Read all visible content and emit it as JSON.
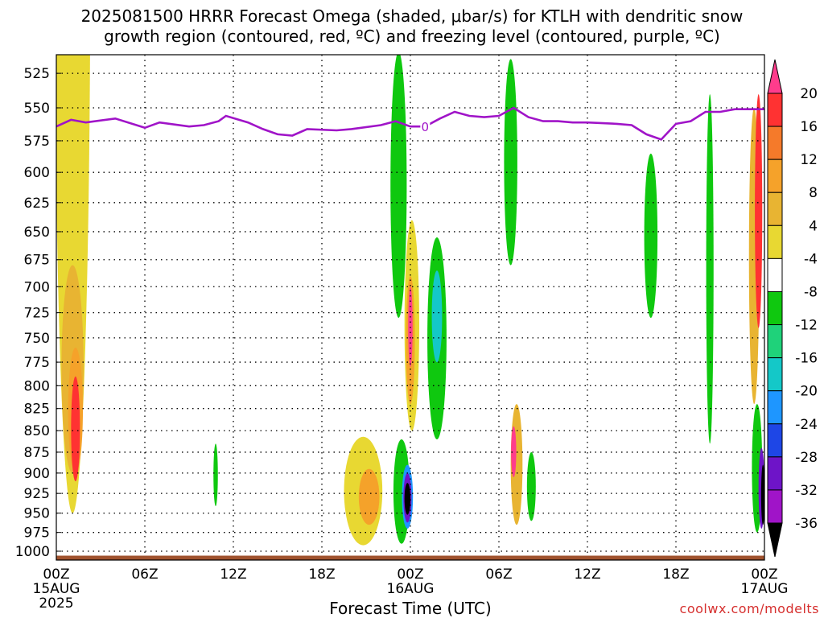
{
  "chart_data": {
    "type": "heatmap",
    "title": "2025081500 HRRR Forecast Omega (shaded, μbar/s) for KTLH with dendritic snow growth region (contoured, red, ºC) and freezing level (contoured, purple, ºC)",
    "title_lines": [
      "2025081500 HRRR Forecast Omega (shaded, μbar/s) for KTLH with dendritic snow",
      "growth region (contoured, red, ºC) and freezing level (contoured, purple, ºC)"
    ],
    "xlabel": "Forecast Time (UTC)",
    "ylabel": "",
    "credit": "coolwx.com/modelts",
    "x_ticks": [
      {
        "hour": 0,
        "label": "00Z",
        "sub": "15AUG",
        "sub2": "2025"
      },
      {
        "hour": 6,
        "label": "06Z"
      },
      {
        "hour": 12,
        "label": "12Z"
      },
      {
        "hour": 18,
        "label": "18Z"
      },
      {
        "hour": 24,
        "label": "00Z",
        "sub": "16AUG"
      },
      {
        "hour": 30,
        "label": "06Z"
      },
      {
        "hour": 36,
        "label": "12Z"
      },
      {
        "hour": 42,
        "label": "18Z"
      },
      {
        "hour": 48,
        "label": "00Z",
        "sub": "17AUG"
      }
    ],
    "x_range_hours": [
      0,
      48
    ],
    "y_ticks": [
      525,
      550,
      575,
      600,
      625,
      650,
      675,
      700,
      725,
      750,
      775,
      800,
      825,
      850,
      875,
      900,
      925,
      950,
      975,
      1000
    ],
    "y_range_hpa": [
      1012,
      512
    ],
    "y_scale": "log-pressure",
    "grid": "dotted",
    "colorbar": {
      "levels": [
        20,
        16,
        12,
        8,
        4,
        -4,
        -8,
        -12,
        -16,
        -20,
        -24,
        -28,
        -32,
        -36
      ],
      "colors": [
        "#ff3c8c",
        "#ff3232",
        "#f57a2a",
        "#f5a22a",
        "#e8b432",
        "#e8d832",
        "#ffffff",
        "#0fc80f",
        "#1fd27a",
        "#14c8c8",
        "#1e96ff",
        "#1e46e6",
        "#6e14c8",
        "#a014c8",
        "#a0a0a0",
        "#000000"
      ]
    },
    "freezing_level": {
      "label": "0",
      "color": "#a014c8",
      "points": [
        [
          0,
          564
        ],
        [
          1,
          559
        ],
        [
          2,
          561
        ],
        [
          4,
          558
        ],
        [
          6,
          565
        ],
        [
          7,
          561
        ],
        [
          9,
          564
        ],
        [
          10,
          563
        ],
        [
          11,
          560
        ],
        [
          11.5,
          556
        ],
        [
          13,
          561
        ],
        [
          14,
          566
        ],
        [
          15,
          570
        ],
        [
          16,
          571
        ],
        [
          17,
          566
        ],
        [
          19,
          567
        ],
        [
          20,
          566
        ],
        [
          22,
          563
        ],
        [
          23,
          560
        ],
        [
          24,
          564
        ],
        [
          25,
          564
        ],
        [
          26,
          558
        ],
        [
          27,
          553
        ],
        [
          28,
          556
        ],
        [
          29,
          557
        ],
        [
          30,
          556
        ],
        [
          31,
          550
        ],
        [
          32,
          557
        ],
        [
          33,
          560
        ],
        [
          34,
          560
        ],
        [
          35,
          561
        ],
        [
          36,
          561
        ],
        [
          38,
          562
        ],
        [
          39,
          563
        ],
        [
          40,
          570
        ],
        [
          41,
          574
        ],
        [
          42,
          562
        ],
        [
          43,
          560
        ],
        [
          44,
          553
        ],
        [
          45,
          553
        ],
        [
          46,
          551
        ],
        [
          48,
          551
        ]
      ]
    },
    "omega_regions": [
      {
        "x": 1.1,
        "p": 830,
        "w": 2.4,
        "h1": 610,
        "h2": 120,
        "color": "#e8d832"
      },
      {
        "x": 1.1,
        "p": 830,
        "w": 1.5,
        "h1": 150,
        "h2": 70,
        "color": "#e8b432"
      },
      {
        "x": 1.3,
        "p": 845,
        "w": 1.0,
        "h1": 85,
        "h2": 55,
        "color": "#f5a22a"
      },
      {
        "x": 1.3,
        "p": 850,
        "w": 0.6,
        "h1": 60,
        "h2": 60,
        "color": "#ff3232"
      },
      {
        "x": 10.8,
        "p": 903,
        "w": 0.3,
        "h1": 38,
        "h2": 38,
        "color": "#0fc80f"
      },
      {
        "x": 20.8,
        "p": 912,
        "w": 2.6,
        "h1": 55,
        "h2": 80,
        "color": "#e8d832"
      },
      {
        "x": 21.2,
        "p": 925,
        "w": 1.4,
        "h1": 30,
        "h2": 40,
        "color": "#f5a22a"
      },
      {
        "x": 23.2,
        "p": 650,
        "w": 1.1,
        "h1": 140,
        "h2": 80,
        "color": "#0fc80f"
      },
      {
        "x": 23.4,
        "p": 940,
        "w": 1.1,
        "h1": 80,
        "h2": 50,
        "color": "#0fc80f"
      },
      {
        "x": 24.1,
        "p": 750,
        "w": 1.0,
        "h1": 110,
        "h2": 100,
        "color": "#e8d832"
      },
      {
        "x": 24.0,
        "p": 760,
        "w": 0.6,
        "h1": 70,
        "h2": 60,
        "color": "#f5a22a"
      },
      {
        "x": 24.0,
        "p": 740,
        "w": 0.3,
        "h1": 40,
        "h2": 40,
        "color": "#ff3c8c"
      },
      {
        "x": 25.8,
        "p": 740,
        "w": 1.3,
        "h1": 85,
        "h2": 120,
        "color": "#0fc80f"
      },
      {
        "x": 25.8,
        "p": 730,
        "w": 0.7,
        "h1": 45,
        "h2": 45,
        "color": "#14c8c8"
      },
      {
        "x": 23.8,
        "p": 930,
        "w": 0.75,
        "h1": 40,
        "h2": 40,
        "color": "#1e96ff"
      },
      {
        "x": 23.8,
        "p": 930,
        "w": 0.55,
        "h1": 30,
        "h2": 32,
        "color": "#6e14c8"
      },
      {
        "x": 23.8,
        "p": 930,
        "w": 0.4,
        "h1": 18,
        "h2": 22,
        "color": "#000000"
      },
      {
        "x": 30.8,
        "p": 600,
        "w": 0.9,
        "h1": 85,
        "h2": 80,
        "color": "#0fc80f"
      },
      {
        "x": 31.2,
        "p": 875,
        "w": 0.8,
        "h1": 55,
        "h2": 90,
        "color": "#e8b432"
      },
      {
        "x": 31.0,
        "p": 875,
        "w": 0.35,
        "h1": 30,
        "h2": 30,
        "color": "#ff3c8c"
      },
      {
        "x": 32.2,
        "p": 920,
        "w": 0.6,
        "h1": 45,
        "h2": 40,
        "color": "#0fc80f"
      },
      {
        "x": 40.3,
        "p": 650,
        "w": 0.9,
        "h1": 65,
        "h2": 80,
        "color": "#0fc80f"
      },
      {
        "x": 44.3,
        "p": 700,
        "w": 0.5,
        "h1": 160,
        "h2": 165,
        "color": "#0fc80f"
      },
      {
        "x": 47.3,
        "p": 720,
        "w": 0.7,
        "h1": 170,
        "h2": 100,
        "color": "#e8b432"
      },
      {
        "x": 47.6,
        "p": 640,
        "w": 0.5,
        "h1": 100,
        "h2": 100,
        "color": "#ff3232"
      },
      {
        "x": 47.5,
        "p": 900,
        "w": 0.7,
        "h1": 80,
        "h2": 75,
        "color": "#0fc80f"
      },
      {
        "x": 47.8,
        "p": 920,
        "w": 0.4,
        "h1": 50,
        "h2": 50,
        "color": "#6e14c8"
      },
      {
        "x": 47.9,
        "p": 925,
        "w": 0.25,
        "h1": 35,
        "h2": 40,
        "color": "#000000"
      }
    ]
  }
}
